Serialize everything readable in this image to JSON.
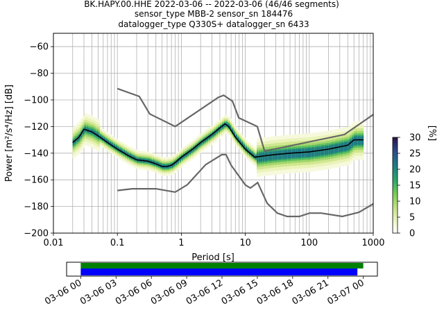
{
  "title": {
    "line1": "BK.HAPY.00.HHE   2022-03-06 -- 2022-03-06  (46/46 segments)",
    "line2": "sensor_type MBB-2 sensor_sn 184476",
    "line3": "datalogger_type Q330S+ datalogger_sn 6433"
  },
  "chart_data": [
    {
      "type": "heatmap",
      "xlabel": "Period [s]",
      "ylabel": "Power [m²/s⁴/Hz] [dB]",
      "xscale": "log",
      "xlim": [
        0.01,
        1000
      ],
      "ylim": [
        -200,
        -50
      ],
      "x_ticks": [
        {
          "value": 0.01,
          "label": "0.01"
        },
        {
          "value": 0.1,
          "label": "0.1"
        },
        {
          "value": 1,
          "label": "1"
        },
        {
          "value": 10,
          "label": "10"
        },
        {
          "value": 100,
          "label": "100"
        },
        {
          "value": 1000,
          "label": "1000"
        }
      ],
      "y_ticks": [
        -60,
        -80,
        -100,
        -120,
        -140,
        -160,
        -180,
        -200
      ],
      "grid": true,
      "colorbar": {
        "label": "[%]",
        "range": [
          0,
          30
        ],
        "ticks": [
          0,
          5,
          10,
          15,
          20,
          25,
          30
        ]
      },
      "mode_line": [
        [
          0.02,
          -132
        ],
        [
          0.025,
          -128
        ],
        [
          0.03,
          -122
        ],
        [
          0.04,
          -124
        ],
        [
          0.05,
          -127
        ],
        [
          0.07,
          -132
        ],
        [
          0.1,
          -137
        ],
        [
          0.15,
          -142
        ],
        [
          0.2,
          -145
        ],
        [
          0.3,
          -146
        ],
        [
          0.4,
          -148
        ],
        [
          0.5,
          -150
        ],
        [
          0.6,
          -150
        ],
        [
          0.7,
          -149
        ],
        [
          0.8,
          -147
        ],
        [
          1.0,
          -143
        ],
        [
          1.5,
          -137
        ],
        [
          2.0,
          -132
        ],
        [
          3.0,
          -126
        ],
        [
          4.0,
          -121
        ],
        [
          4.8,
          -118
        ],
        [
          5.5,
          -120
        ],
        [
          7.0,
          -128
        ],
        [
          10.0,
          -137
        ],
        [
          14.0,
          -143
        ],
        [
          20.0,
          -142
        ],
        [
          30.0,
          -141
        ],
        [
          50.0,
          -140
        ],
        [
          100.0,
          -139
        ],
        [
          200.0,
          -137
        ],
        [
          400.0,
          -134
        ],
        [
          500.0,
          -130
        ],
        [
          700.0,
          -130
        ]
      ],
      "nhnm": [
        [
          0.1,
          -91.5
        ],
        [
          0.22,
          -97.4
        ],
        [
          0.32,
          -110.5
        ],
        [
          0.8,
          -120
        ],
        [
          3.8,
          -98
        ],
        [
          4.6,
          -96.5
        ],
        [
          6.3,
          -101
        ],
        [
          7.9,
          -113.5
        ],
        [
          15.4,
          -120
        ],
        [
          20.0,
          -138.5
        ],
        [
          354.8,
          -126
        ],
        [
          1000,
          -111
        ]
      ],
      "nlnm": [
        [
          0.1,
          -168
        ],
        [
          0.17,
          -166.7
        ],
        [
          0.4,
          -166.7
        ],
        [
          0.8,
          -169.2
        ],
        [
          1.24,
          -163.7
        ],
        [
          2.4,
          -148.6
        ],
        [
          4.3,
          -141.1
        ],
        [
          5.0,
          -141.1
        ],
        [
          6.0,
          -149
        ],
        [
          10.0,
          -163.8
        ],
        [
          12.0,
          -166.2
        ],
        [
          15.6,
          -162.1
        ],
        [
          21.9,
          -177.5
        ],
        [
          31.6,
          -185
        ],
        [
          45.0,
          -187.5
        ],
        [
          70.0,
          -187.5
        ],
        [
          101.0,
          -185
        ],
        [
          154.0,
          -185
        ],
        [
          328.0,
          -187.5
        ],
        [
          600.0,
          -184.4
        ],
        [
          1000,
          -178
        ]
      ]
    },
    {
      "type": "bar",
      "orientation": "horizontal",
      "x_ticks": [
        "03-06 00",
        "03-06 03",
        "03-06 06",
        "03-06 09",
        "03-06 12",
        "03-06 15",
        "03-06 18",
        "03-06 21",
        "03-07 00"
      ],
      "x_tick_hours": [
        0,
        3,
        6,
        9,
        12,
        15,
        18,
        21,
        24
      ],
      "xlim_hours": [
        -1.2,
        25.2
      ],
      "series": [
        {
          "color": "#008000",
          "start_hour": 0,
          "end_hour": 24.0
        },
        {
          "color": "#0000ff",
          "start_hour": 0,
          "end_hour": 23.5
        }
      ]
    }
  ],
  "colors": {
    "noise_models": "#666666",
    "mode_line": "#000000",
    "grid": "#b0b0b0",
    "coverage_data": "#008000",
    "coverage_segments": "#0000ff"
  }
}
